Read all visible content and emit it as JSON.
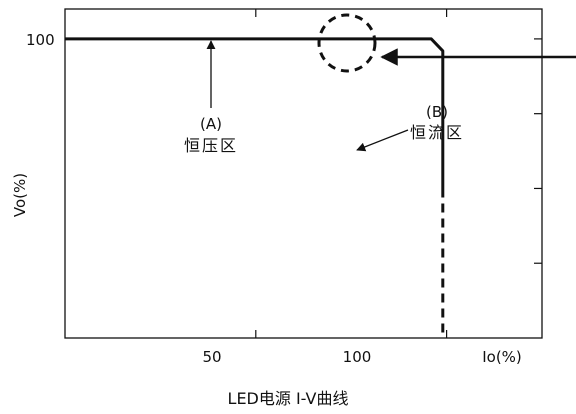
{
  "chart_data": {
    "type": "line",
    "caption": "LED电源 I-V曲线",
    "xlabel": "Io(%)",
    "ylabel": "Vo(%)",
    "xlim": [
      0,
      125
    ],
    "ylim": [
      0,
      110
    ],
    "x_ticks": [
      {
        "value": 50,
        "label": "50"
      },
      {
        "value": 100,
        "label": "100"
      }
    ],
    "y_ticks": [
      {
        "value": 100,
        "label": "100"
      }
    ],
    "right_ticks": [
      100,
      75,
      50,
      25
    ],
    "top_ticks": [
      50,
      100
    ],
    "series": [
      {
        "style": "solid",
        "points": [
          [
            0,
            100
          ],
          [
            96,
            100
          ],
          [
            99,
            96
          ],
          [
            99,
            50
          ]
        ]
      },
      {
        "style": "dashed",
        "points": [
          [
            99,
            50
          ],
          [
            99,
            0
          ]
        ]
      }
    ],
    "annotations": [
      {
        "code": "(A)",
        "label": "恒压区",
        "x": 50,
        "y": 66
      },
      {
        "code": "(B)",
        "label": "恒流区",
        "x": 123,
        "y": 75
      }
    ]
  }
}
